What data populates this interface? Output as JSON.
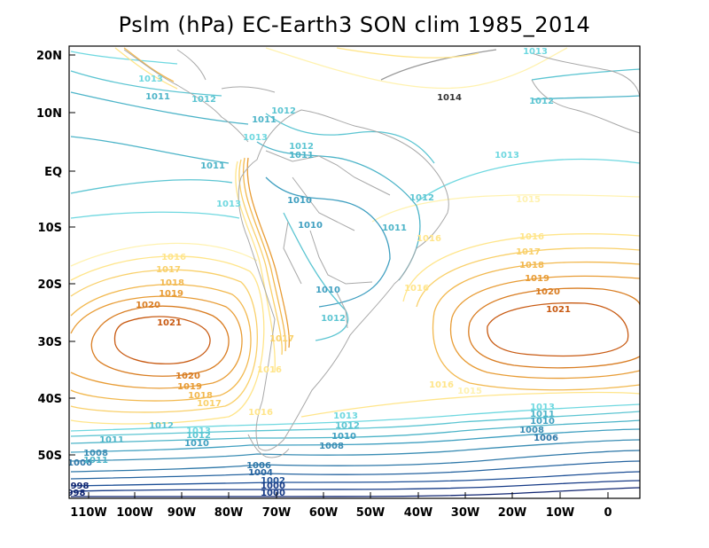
{
  "title": "Pslm (hPa) EC-Earth3 SON clim 1985_2014",
  "axes": {
    "x_ticks": [
      "110W",
      "100W",
      "90W",
      "80W",
      "70W",
      "60W",
      "50W",
      "40W",
      "30W",
      "20W",
      "10W",
      "0"
    ],
    "y_ticks": [
      "20N",
      "10N",
      "EQ",
      "10S",
      "20S",
      "30S",
      "40S",
      "50S"
    ]
  },
  "legend_colors": {
    "996": "#0a1a5c",
    "998": "#0f2470",
    "1000": "#163a86",
    "1002": "#1d4f96",
    "1004": "#25639f",
    "1006": "#2d77a8",
    "1008": "#3a8db4",
    "1010": "#3f9fc0",
    "1011": "#4cb4c8",
    "1012": "#5cc5d2",
    "1013": "#6fd8e0",
    "1015": "#fff2b0",
    "1016": "#ffe58a",
    "1017": "#f9d06a",
    "1018": "#f2b84e",
    "1019": "#e89c35",
    "1020": "#d97d22",
    "1021": "#c85a12",
    "coast": "#a8a8a8"
  },
  "contour_labels": [
    {
      "t": "1013",
      "c": "1013"
    },
    {
      "t": "1011",
      "c": "1011"
    },
    {
      "t": "1012",
      "c": "1012"
    },
    {
      "t": "1011",
      "c": "1011"
    },
    {
      "t": "1012",
      "c": "1012"
    },
    {
      "t": "1013",
      "c": "1013"
    },
    {
      "t": "1011",
      "c": "1011"
    },
    {
      "t": "1012",
      "c": "1012"
    },
    {
      "t": "1011",
      "c": "1011"
    },
    {
      "t": "1010",
      "c": "1010"
    },
    {
      "t": "1012",
      "c": "1012"
    },
    {
      "t": "1011",
      "c": "1011"
    },
    {
      "t": "1010",
      "c": "1010"
    },
    {
      "t": "1010",
      "c": "1010"
    },
    {
      "t": "1012",
      "c": "1012"
    },
    {
      "t": "1013",
      "c": "1013"
    },
    {
      "t": "1016",
      "c": "1016"
    },
    {
      "t": "1017",
      "c": "1017"
    },
    {
      "t": "1018",
      "c": "1018"
    },
    {
      "t": "1019",
      "c": "1019"
    },
    {
      "t": "1020",
      "c": "1020"
    },
    {
      "t": "1021",
      "c": "1021"
    },
    {
      "t": "1020",
      "c": "1020"
    },
    {
      "t": "1019",
      "c": "1019"
    },
    {
      "t": "1018",
      "c": "1018"
    },
    {
      "t": "1017",
      "c": "1017"
    },
    {
      "t": "1016",
      "c": "1016"
    },
    {
      "t": "1017",
      "c": "1017"
    },
    {
      "t": "1018",
      "c": "1018"
    },
    {
      "t": "1019",
      "c": "1019"
    },
    {
      "t": "1020",
      "c": "1020"
    },
    {
      "t": "1021",
      "c": "1021"
    },
    {
      "t": "1017",
      "c": "1017"
    },
    {
      "t": "1016",
      "c": "1016"
    },
    {
      "t": "1016",
      "c": "1016"
    },
    {
      "t": "1015",
      "c": "1015"
    },
    {
      "t": "1016",
      "c": "1016"
    },
    {
      "t": "1013",
      "c": "1013"
    },
    {
      "t": "1012",
      "c": "1012"
    },
    {
      "t": "1010",
      "c": "1010"
    },
    {
      "t": "1013",
      "c": "1013"
    },
    {
      "t": "1012",
      "c": "1012"
    },
    {
      "t": "1011",
      "c": "1011"
    },
    {
      "t": "1010",
      "c": "1010"
    },
    {
      "t": "1008",
      "c": "1008"
    },
    {
      "t": "1006",
      "c": "1006"
    },
    {
      "t": "1008",
      "c": "1008"
    },
    {
      "t": "1006",
      "c": "1006"
    },
    {
      "t": "1004",
      "c": "1004"
    },
    {
      "t": "1002",
      "c": "1002"
    },
    {
      "t": "1000",
      "c": "1000"
    },
    {
      "t": "998",
      "c": "998"
    },
    {
      "t": "1000",
      "c": "1000"
    },
    {
      "t": "998",
      "c": "998"
    },
    {
      "t": "1013",
      "c": "1013"
    },
    {
      "t": "1011",
      "c": "1011"
    },
    {
      "t": "1010",
      "c": "1010"
    },
    {
      "t": "1008",
      "c": "1008"
    },
    {
      "t": "1006",
      "c": "1006"
    },
    {
      "t": "1016",
      "c": "1016"
    },
    {
      "t": "1012",
      "c": "1012"
    },
    {
      "t": "1011",
      "c": "1011"
    },
    {
      "t": "1012",
      "c": "1012"
    },
    {
      "t": "1013",
      "c": "1013"
    },
    {
      "t": "1013",
      "c": "1013"
    },
    {
      "t": "1014",
      "c": "1014"
    },
    {
      "t": "1015",
      "c": "1015"
    },
    {
      "t": "1016",
      "c": "1016"
    }
  ]
}
